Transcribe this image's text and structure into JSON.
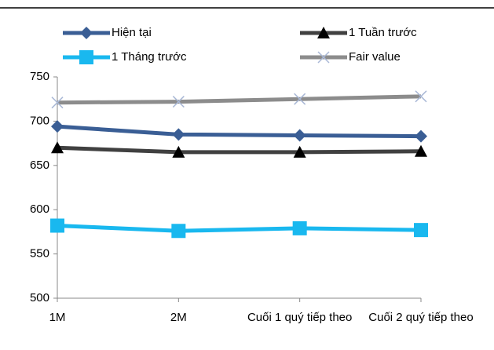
{
  "chart_data": {
    "type": "line",
    "categories": [
      "1M",
      "2M",
      "Cuối 1 quý tiếp theo",
      "Cuối 2 quý tiếp theo"
    ],
    "series": [
      {
        "name": "Hiện tại",
        "color": "#3a5e95",
        "marker": "diamond",
        "values": [
          694,
          685,
          684,
          683
        ]
      },
      {
        "name": "1 Tuần trước",
        "color": "#404040",
        "marker": "triangle",
        "values": [
          670,
          665,
          665,
          666
        ]
      },
      {
        "name": "1 Tháng trước",
        "color": "#19b8ef",
        "marker": "square",
        "values": [
          582,
          576,
          579,
          577
        ]
      },
      {
        "name": "Fair value",
        "color": "#8c8c8c",
        "marker": "x",
        "values": [
          721,
          722,
          725,
          728
        ]
      }
    ],
    "ylim": [
      500,
      750
    ],
    "yticks": [
      500,
      550,
      600,
      650,
      700,
      750
    ],
    "grid": false
  }
}
